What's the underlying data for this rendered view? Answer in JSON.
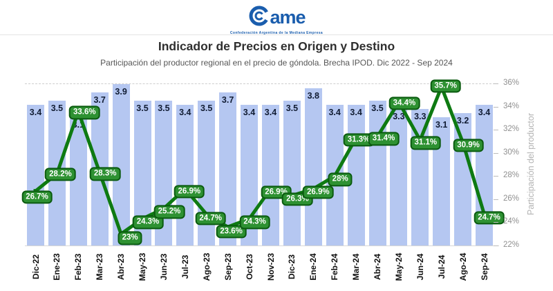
{
  "header": {
    "logo_text": "ame",
    "logo_sub": "Confederación Argentina de la Mediana Empresa",
    "brand_color": "#1a5dad"
  },
  "title": "Indicador de Precios en Origen y Destino",
  "subtitle": "Participación del productor regional en el precio de góndola. Brecha IPOD. Dic 2022 - Sep 2024",
  "chart_data": {
    "type": "bar",
    "subtype": "bar-with-line-overlay",
    "categories": [
      "Dic-22",
      "Ene-23",
      "Feb-23",
      "Mar-23",
      "Abr-23",
      "May-23",
      "Jun-23",
      "Jul-23",
      "Ago-23",
      "Sep-23",
      "Oct-23",
      "Nov-23",
      "Dic-23",
      "Ene-24",
      "Feb-24",
      "Mar-24",
      "Abr-24",
      "May-24",
      "Jun-24",
      "Jul-24",
      "Ago-24",
      "Sep-24"
    ],
    "series": [
      {
        "name": "Brecha IPOD (veces)",
        "type": "bar",
        "values": [
          3.4,
          3.5,
          3.1,
          3.7,
          3.9,
          3.5,
          3.5,
          3.4,
          3.5,
          3.7,
          3.4,
          3.4,
          3.5,
          3.8,
          3.4,
          3.4,
          3.5,
          3.3,
          3.3,
          3.1,
          3.2,
          3.4
        ],
        "axis_max": 4.0,
        "color": "#b5c7f1",
        "label_color": "#111c33"
      },
      {
        "name": "Participación del productor",
        "type": "line",
        "values": [
          26.7,
          28.2,
          33.6,
          28.3,
          23,
          24.3,
          25.2,
          26.9,
          24.7,
          23.6,
          24.3,
          26.9,
          26.3,
          26.9,
          28,
          31.3,
          31.4,
          34.4,
          31.1,
          35.7,
          30.9,
          24.7
        ],
        "labels": [
          "26.7%",
          "28.2%",
          "33.6%",
          "28.3%",
          "23%",
          "24.3%",
          "25.2%",
          "26.9%",
          "24.7%",
          "23.6%",
          "24.3%",
          "26.9%",
          "26.3%",
          "26.9%",
          "28%",
          "31.3%",
          "31.4%",
          "34.4%",
          "31.1%",
          "35.7%",
          "30.9%",
          "24.7%"
        ],
        "color": "#0e7a12",
        "label_bg": "#2e9132",
        "label_border": "#0a5a0f",
        "label_text_color": "#ffffff"
      }
    ],
    "right_axis": {
      "title": "Participación del productor",
      "min": 22,
      "max": 36,
      "ticks": [
        "22%",
        "24%",
        "26%",
        "28%",
        "30%",
        "32%",
        "34%",
        "36%"
      ],
      "tick_values": [
        22,
        24,
        26,
        28,
        30,
        32,
        34,
        36
      ]
    },
    "grid": "dashed line at 36% only",
    "legend_position": "none",
    "background": "#ffffff"
  }
}
